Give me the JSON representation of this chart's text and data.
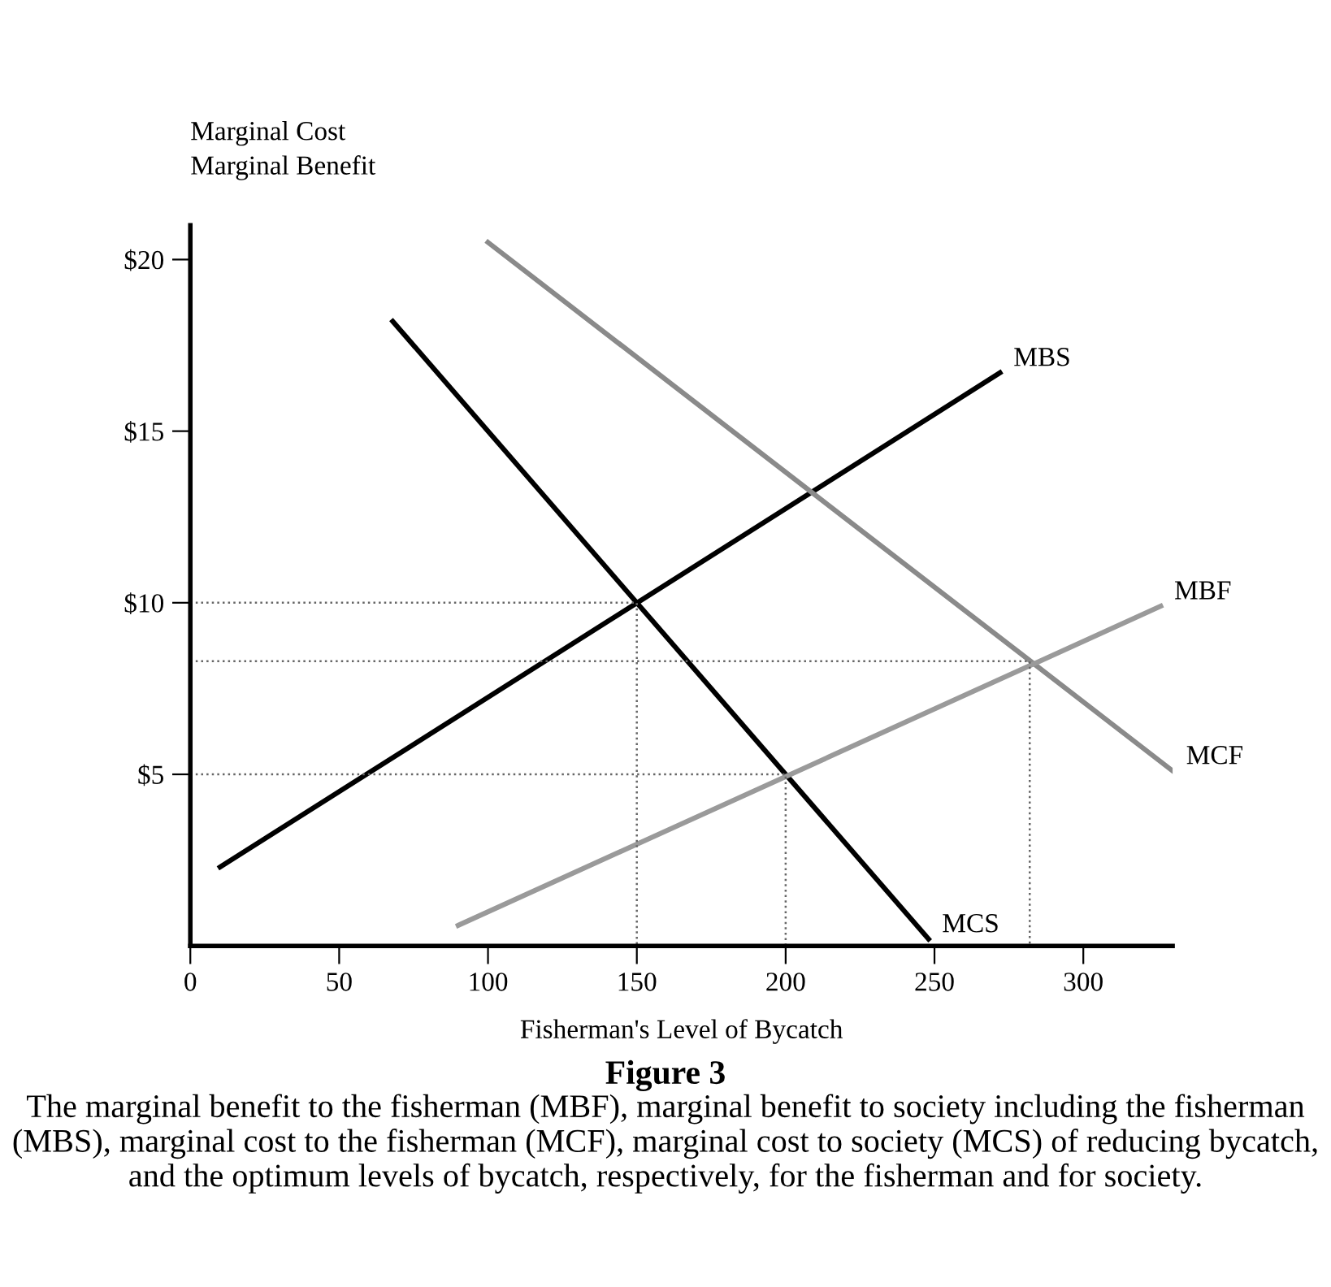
{
  "chart_data": {
    "type": "line",
    "title": "Figure 3",
    "subtitle": "The marginal benefit to the fisherman (MBF), marginal benefit to society including the fisherman (MBS), marginal cost to the fisherman (MCF), marginal cost to society (MCS) of reducing bycatch, and the optimum levels of bycatch, respectively, for the fisherman and for society.",
    "xlabel": "Fisherman's Level of Bycatch",
    "ylabel": "Marginal Cost\nMarginal Benefit",
    "xlim": [
      0,
      330
    ],
    "ylim": [
      0,
      21
    ],
    "xticks": [
      0,
      50,
      100,
      150,
      200,
      250,
      300
    ],
    "yticks": [
      {
        "value": 5,
        "label": "$5"
      },
      {
        "value": 10,
        "label": "$10"
      },
      {
        "value": 15,
        "label": "$15"
      },
      {
        "value": 20,
        "label": "$20"
      }
    ],
    "grid": false,
    "legend": false,
    "marker": "none",
    "series": [
      {
        "name": "MBS",
        "color": "#000000",
        "x": [
          10,
          272
        ],
        "values": [
          2.3,
          16.7
        ]
      },
      {
        "name": "MCS",
        "color": "#000000",
        "x": [
          68,
          248
        ],
        "values": [
          18.2,
          0.2
        ]
      },
      {
        "name": "MCF",
        "color": "#8a8a8a",
        "x": [
          100,
          330
        ],
        "values": [
          20.5,
          5.1
        ]
      },
      {
        "name": "MBF",
        "color": "#9a9a9a",
        "x": [
          90,
          326
        ],
        "values": [
          0.6,
          9.9
        ]
      },
      {
        "color": "#666666",
        "line_style": "dotted",
        "x": [
          0,
          150,
          150
        ],
        "values": [
          10,
          10,
          0
        ]
      },
      {
        "color": "#666666",
        "line_style": "dotted",
        "x": [
          0,
          200,
          200
        ],
        "values": [
          5,
          5,
          0
        ]
      },
      {
        "color": "#666666",
        "line_style": "dotted",
        "x": [
          0,
          282,
          282
        ],
        "values": [
          8.3,
          8.3,
          0
        ]
      }
    ]
  }
}
